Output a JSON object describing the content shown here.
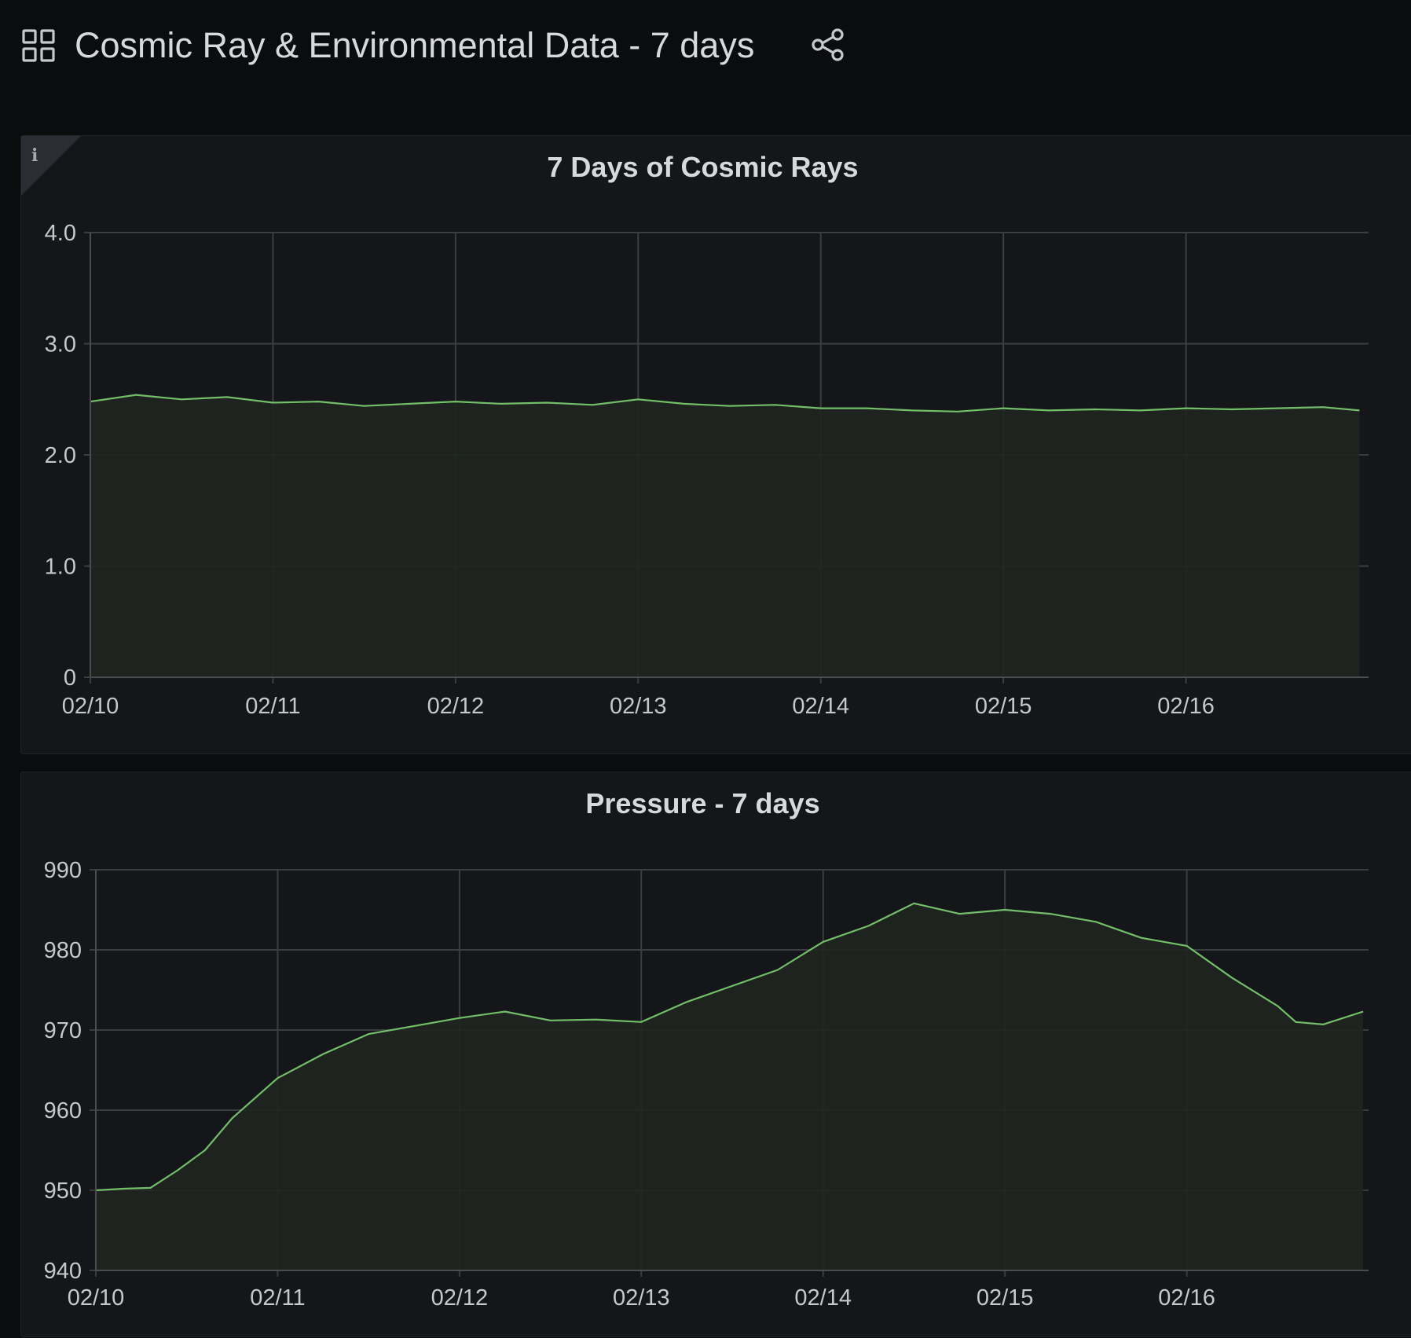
{
  "header": {
    "title": "Cosmic Ray & Environmental Data - 7 days",
    "icons": {
      "dashboard": "grid-icon",
      "share": "share-icon"
    }
  },
  "colors": {
    "background": "#0b0c0e",
    "panel": "#141619",
    "series": "#73bf69",
    "fill": "#1f2520",
    "grid": "#3b3d41"
  },
  "chart_data": [
    {
      "type": "area",
      "title": "7 Days of Cosmic Rays",
      "info_icon": "info-icon",
      "x_ticks": [
        "02/10",
        "02/11",
        "02/12",
        "02/13",
        "02/14",
        "02/15",
        "02/16"
      ],
      "x_range": [
        0,
        7
      ],
      "y_ticks": [
        "0",
        "1.0",
        "2.0",
        "3.0",
        "4.0"
      ],
      "ylim": [
        0,
        4
      ],
      "grid": true,
      "x": [
        0.0,
        0.25,
        0.5,
        0.75,
        1.0,
        1.25,
        1.5,
        1.75,
        2.0,
        2.25,
        2.5,
        2.75,
        3.0,
        3.25,
        3.5,
        3.75,
        4.0,
        4.25,
        4.5,
        4.75,
        5.0,
        5.25,
        5.5,
        5.75,
        6.0,
        6.25,
        6.5,
        6.75,
        6.95
      ],
      "values": [
        2.48,
        2.54,
        2.5,
        2.52,
        2.47,
        2.48,
        2.44,
        2.46,
        2.48,
        2.46,
        2.47,
        2.45,
        2.5,
        2.46,
        2.44,
        2.45,
        2.42,
        2.42,
        2.4,
        2.39,
        2.42,
        2.4,
        2.41,
        2.4,
        2.42,
        2.41,
        2.42,
        2.43,
        2.4
      ]
    },
    {
      "type": "area",
      "title": "Pressure - 7 days",
      "x_ticks": [
        "02/10",
        "02/11",
        "02/12",
        "02/13",
        "02/14",
        "02/15",
        "02/16"
      ],
      "x_range": [
        0,
        7
      ],
      "y_ticks": [
        "940",
        "950",
        "960",
        "970",
        "980",
        "990"
      ],
      "ylim": [
        940,
        990
      ],
      "grid": true,
      "x": [
        0.0,
        0.15,
        0.3,
        0.45,
        0.6,
        0.75,
        0.9,
        1.0,
        1.25,
        1.5,
        1.75,
        2.0,
        2.25,
        2.5,
        2.75,
        3.0,
        3.25,
        3.5,
        3.75,
        4.0,
        4.25,
        4.5,
        4.75,
        5.0,
        5.25,
        5.5,
        5.75,
        6.0,
        6.25,
        6.5,
        6.6,
        6.75,
        6.97
      ],
      "values": [
        950,
        950.2,
        950.3,
        952.5,
        955,
        959,
        962,
        964,
        967,
        969.5,
        970.5,
        971.5,
        972.3,
        971.2,
        971.3,
        971,
        973.5,
        975.5,
        977.5,
        981,
        983,
        985.8,
        984.5,
        985,
        984.5,
        983.5,
        981.5,
        980.5,
        976.5,
        973,
        971,
        970.7,
        972.3
      ]
    }
  ]
}
